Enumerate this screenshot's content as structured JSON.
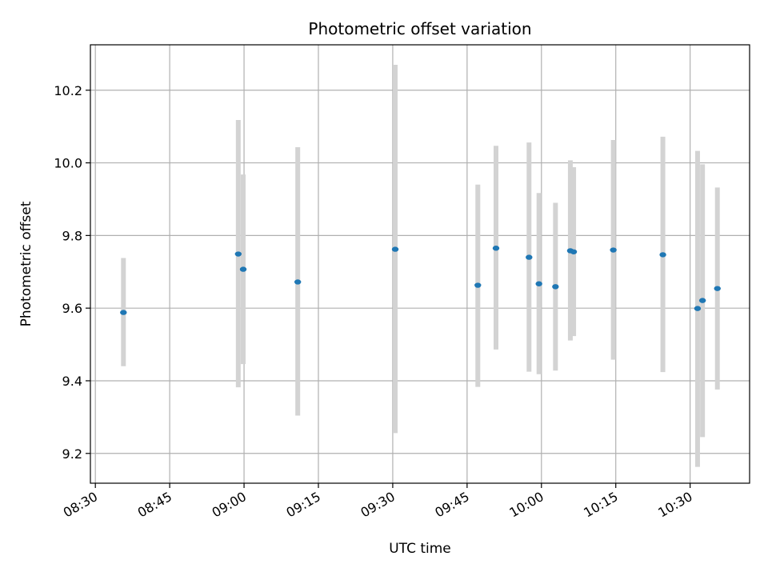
{
  "chart_data": {
    "type": "scatter",
    "title": "Photometric offset variation",
    "xlabel": "UTC time",
    "ylabel": "Photometric offset",
    "x_unit": "time of day (UTC)",
    "xlim": [
      "08:29",
      "10:42"
    ],
    "ylim": [
      9.118,
      10.325
    ],
    "x_ticks": [
      "08:30",
      "08:45",
      "09:00",
      "09:15",
      "09:30",
      "09:45",
      "10:00",
      "10:15",
      "10:30"
    ],
    "y_ticks": [
      9.2,
      9.4,
      9.6,
      9.8,
      10.0,
      10.2
    ],
    "y_tick_labels": [
      "9.2",
      "9.4",
      "9.6",
      "9.8",
      "10.0",
      "10.2"
    ],
    "grid": true,
    "legend": null,
    "colors": {
      "point": "#1f77b4",
      "error_bar": "#d3d3d3",
      "grid": "#b0b0b0"
    },
    "points": [
      {
        "x": "08:35:40",
        "y": 9.588,
        "err_low": 9.44,
        "err_high": 9.738
      },
      {
        "x": "08:58:50",
        "y": 9.749,
        "err_low": 9.382,
        "err_high": 10.118
      },
      {
        "x": "08:59:50",
        "y": 9.707,
        "err_low": 9.446,
        "err_high": 9.968
      },
      {
        "x": "09:10:50",
        "y": 9.672,
        "err_low": 9.304,
        "err_high": 10.043
      },
      {
        "x": "09:30:30",
        "y": 9.762,
        "err_low": 9.256,
        "err_high": 10.27
      },
      {
        "x": "09:47:10",
        "y": 9.663,
        "err_low": 9.383,
        "err_high": 9.94
      },
      {
        "x": "09:50:50",
        "y": 9.765,
        "err_low": 9.486,
        "err_high": 10.047
      },
      {
        "x": "09:57:30",
        "y": 9.74,
        "err_low": 9.425,
        "err_high": 10.056
      },
      {
        "x": "09:59:30",
        "y": 9.667,
        "err_low": 9.418,
        "err_high": 9.917
      },
      {
        "x": "10:02:50",
        "y": 9.659,
        "err_low": 9.428,
        "err_high": 9.89
      },
      {
        "x": "10:05:50",
        "y": 9.758,
        "err_low": 9.511,
        "err_high": 10.007
      },
      {
        "x": "10:06:30",
        "y": 9.755,
        "err_low": 9.523,
        "err_high": 9.988
      },
      {
        "x": "10:14:30",
        "y": 9.76,
        "err_low": 9.458,
        "err_high": 10.063
      },
      {
        "x": "10:24:30",
        "y": 9.747,
        "err_low": 9.424,
        "err_high": 10.072
      },
      {
        "x": "10:31:30",
        "y": 9.599,
        "err_low": 9.163,
        "err_high": 10.033
      },
      {
        "x": "10:32:30",
        "y": 9.621,
        "err_low": 9.245,
        "err_high": 9.996
      },
      {
        "x": "10:35:30",
        "y": 9.654,
        "err_low": 9.376,
        "err_high": 9.932
      }
    ]
  }
}
